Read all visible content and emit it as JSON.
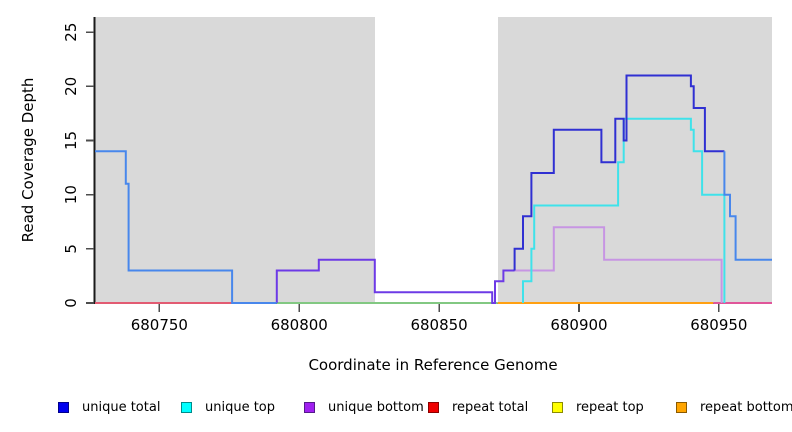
{
  "chart_data": {
    "type": "line",
    "step": true,
    "title": "",
    "xlabel": "Coordinate in Reference Genome",
    "ylabel": "Read Coverage Depth",
    "x_range": [
      680727,
      680969
    ],
    "y_range": [
      0,
      26.4
    ],
    "x_ticks": [
      680750,
      680800,
      680850,
      680900,
      680950
    ],
    "y_ticks": [
      0,
      5,
      10,
      15,
      20,
      25
    ],
    "grid": false,
    "plot_bg": "#d9d9d9",
    "highlight_band": {
      "x_start": 680827,
      "x_end": 680871,
      "color": "#ffffff"
    },
    "legend_position": "bottom",
    "legend": [
      {
        "label": "unique total",
        "color": "#0000ee",
        "border": "#00008b"
      },
      {
        "label": "unique top",
        "color": "#00ffff",
        "border": "#008b8b"
      },
      {
        "label": "unique bottom",
        "color": "#a020f0",
        "border": "#551a8b"
      },
      {
        "label": "repeat total",
        "color": "#ee0000",
        "border": "#8b0000"
      },
      {
        "label": "repeat top",
        "color": "#ffff00",
        "border": "#8b8b00"
      },
      {
        "label": "repeat bottom",
        "color": "#ffa500",
        "border": "#8b5a00"
      }
    ],
    "segments": [
      {
        "id": "repeat-total-zero-left",
        "color": "#e25b72",
        "points": [
          [
            680727,
            0
          ],
          [
            680776,
            0
          ]
        ]
      },
      {
        "id": "zero-line-green",
        "color": "#82c882",
        "points": [
          [
            680792,
            0
          ],
          [
            680871,
            0
          ]
        ]
      },
      {
        "id": "repeat-bottom-zero",
        "color": "#ffa012",
        "points": [
          [
            680871,
            0
          ],
          [
            680948,
            0
          ]
        ]
      },
      {
        "id": "repeat-total-zero-right",
        "color": "#e0569a",
        "points": [
          [
            680948,
            0
          ],
          [
            680969,
            0
          ]
        ]
      },
      {
        "id": "unique-bottom-plum",
        "color": "#c795e3",
        "points": [
          [
            680877,
            3
          ],
          [
            680891,
            3
          ],
          [
            680891,
            7
          ],
          [
            680909,
            7
          ],
          [
            680909,
            4
          ],
          [
            680951,
            4
          ],
          [
            680951,
            0
          ]
        ]
      },
      {
        "id": "unique-top-cyan",
        "color": "#3fe2ea",
        "points": [
          [
            680880,
            0
          ],
          [
            680880,
            2
          ],
          [
            680883,
            2
          ],
          [
            680883,
            5
          ],
          [
            680884,
            5
          ],
          [
            680884,
            9
          ],
          [
            680914,
            9
          ],
          [
            680914,
            13
          ],
          [
            680916,
            13
          ],
          [
            680916,
            17
          ],
          [
            680940,
            17
          ],
          [
            680940,
            16
          ],
          [
            680941,
            16
          ],
          [
            680941,
            14
          ],
          [
            680944,
            14
          ],
          [
            680944,
            10
          ],
          [
            680952,
            10
          ],
          [
            680952,
            0
          ]
        ]
      },
      {
        "id": "unique-total-bottom-overlap",
        "color": "#6d3ae6",
        "points": [
          [
            680792,
            0
          ],
          [
            680792,
            3
          ],
          [
            680807,
            3
          ],
          [
            680807,
            4
          ],
          [
            680827,
            4
          ],
          [
            680827,
            1
          ],
          [
            680869,
            1
          ],
          [
            680869,
            0
          ],
          [
            680870,
            0
          ],
          [
            680870,
            2
          ],
          [
            680873,
            2
          ],
          [
            680873,
            3
          ],
          [
            680877,
            3
          ]
        ]
      },
      {
        "id": "unique-total-left",
        "color": "#4887ec",
        "points": [
          [
            680727,
            14
          ],
          [
            680738,
            14
          ],
          [
            680738,
            11
          ],
          [
            680739,
            11
          ],
          [
            680739,
            3
          ],
          [
            680776,
            3
          ],
          [
            680776,
            0
          ],
          [
            680792,
            0
          ]
        ]
      },
      {
        "id": "unique-total-peak",
        "color": "#3030d2",
        "points": [
          [
            680877,
            3
          ],
          [
            680877,
            5
          ],
          [
            680880,
            5
          ],
          [
            680880,
            8
          ],
          [
            680883,
            8
          ],
          [
            680883,
            12
          ],
          [
            680891,
            12
          ],
          [
            680891,
            16
          ],
          [
            680908,
            16
          ],
          [
            680908,
            13
          ],
          [
            680913,
            13
          ],
          [
            680913,
            17
          ],
          [
            680916,
            17
          ],
          [
            680916,
            15
          ],
          [
            680917,
            15
          ],
          [
            680917,
            21
          ],
          [
            680940,
            21
          ],
          [
            680940,
            20
          ],
          [
            680941,
            20
          ],
          [
            680941,
            18
          ],
          [
            680945,
            18
          ],
          [
            680945,
            14
          ],
          [
            680952,
            14
          ]
        ]
      },
      {
        "id": "unique-total-right",
        "color": "#4887ec",
        "points": [
          [
            680952,
            14
          ],
          [
            680952,
            10
          ],
          [
            680954,
            10
          ],
          [
            680954,
            8
          ],
          [
            680956,
            8
          ],
          [
            680956,
            4
          ],
          [
            680969,
            4
          ]
        ]
      }
    ]
  }
}
